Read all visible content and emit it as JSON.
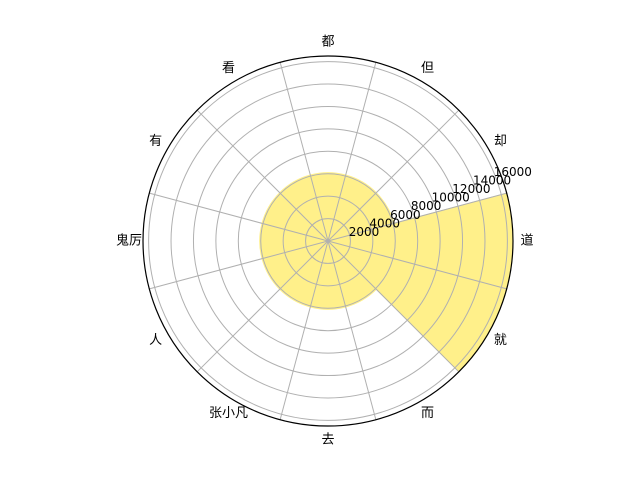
{
  "chart_data": {
    "type": "polar-bar",
    "title": "",
    "categories": [
      "道",
      "却",
      "但",
      "都",
      "看",
      "有",
      "鬼厉",
      "人",
      "张小凡",
      "去",
      "而",
      "就"
    ],
    "series": [
      {
        "values": [
          16500,
          6100,
          6100,
          6100,
          6100,
          6100,
          6100,
          6100,
          6100,
          6100,
          6100,
          16500
        ]
      }
    ],
    "rlim": [
      0,
      16500
    ],
    "rticks": [
      2000,
      4000,
      6000,
      8000,
      10000,
      12000,
      14000,
      16000
    ],
    "rtick_labels": [
      "2000",
      "4000",
      "6000",
      "8000",
      "10000",
      "12000",
      "14000",
      "16000"
    ],
    "angle_unit_deg": 15,
    "grid": true,
    "bar_color": "#fff08a",
    "grid_color": "#b0b0b0",
    "frame_color": "#000000"
  }
}
